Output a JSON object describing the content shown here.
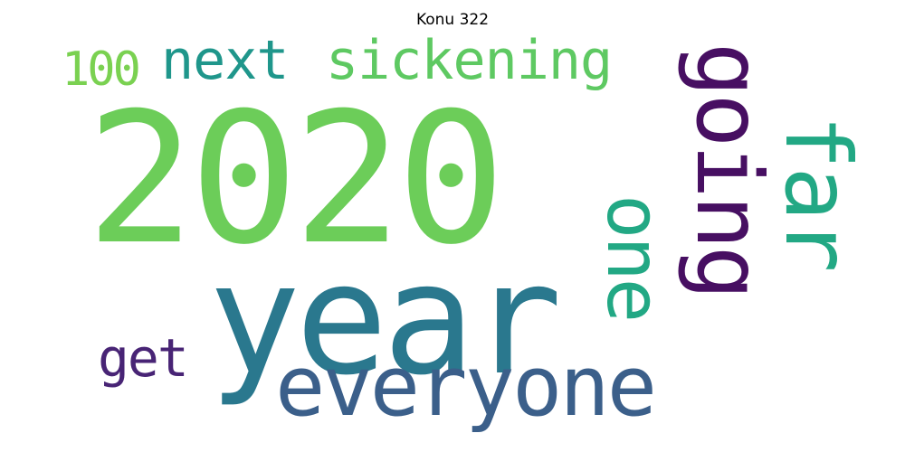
{
  "figure": {
    "title": "Konu 322"
  },
  "words": [
    {
      "text": "2020",
      "color": "#6ccd59",
      "orientation": "horizontal"
    },
    {
      "text": "year",
      "color": "#2a788e",
      "orientation": "horizontal"
    },
    {
      "text": "everyone",
      "color": "#3b5f8a",
      "orientation": "horizontal"
    },
    {
      "text": "going",
      "color": "#470f62",
      "orientation": "vertical"
    },
    {
      "text": "far",
      "color": "#22a884",
      "orientation": "vertical"
    },
    {
      "text": "one",
      "color": "#22a884",
      "orientation": "vertical"
    },
    {
      "text": "next",
      "color": "#1f968b",
      "orientation": "horizontal"
    },
    {
      "text": "sickening",
      "color": "#5ec962",
      "orientation": "horizontal"
    },
    {
      "text": "100",
      "color": "#7ad151",
      "orientation": "horizontal"
    },
    {
      "text": "get",
      "color": "#482475",
      "orientation": "horizontal"
    }
  ]
}
